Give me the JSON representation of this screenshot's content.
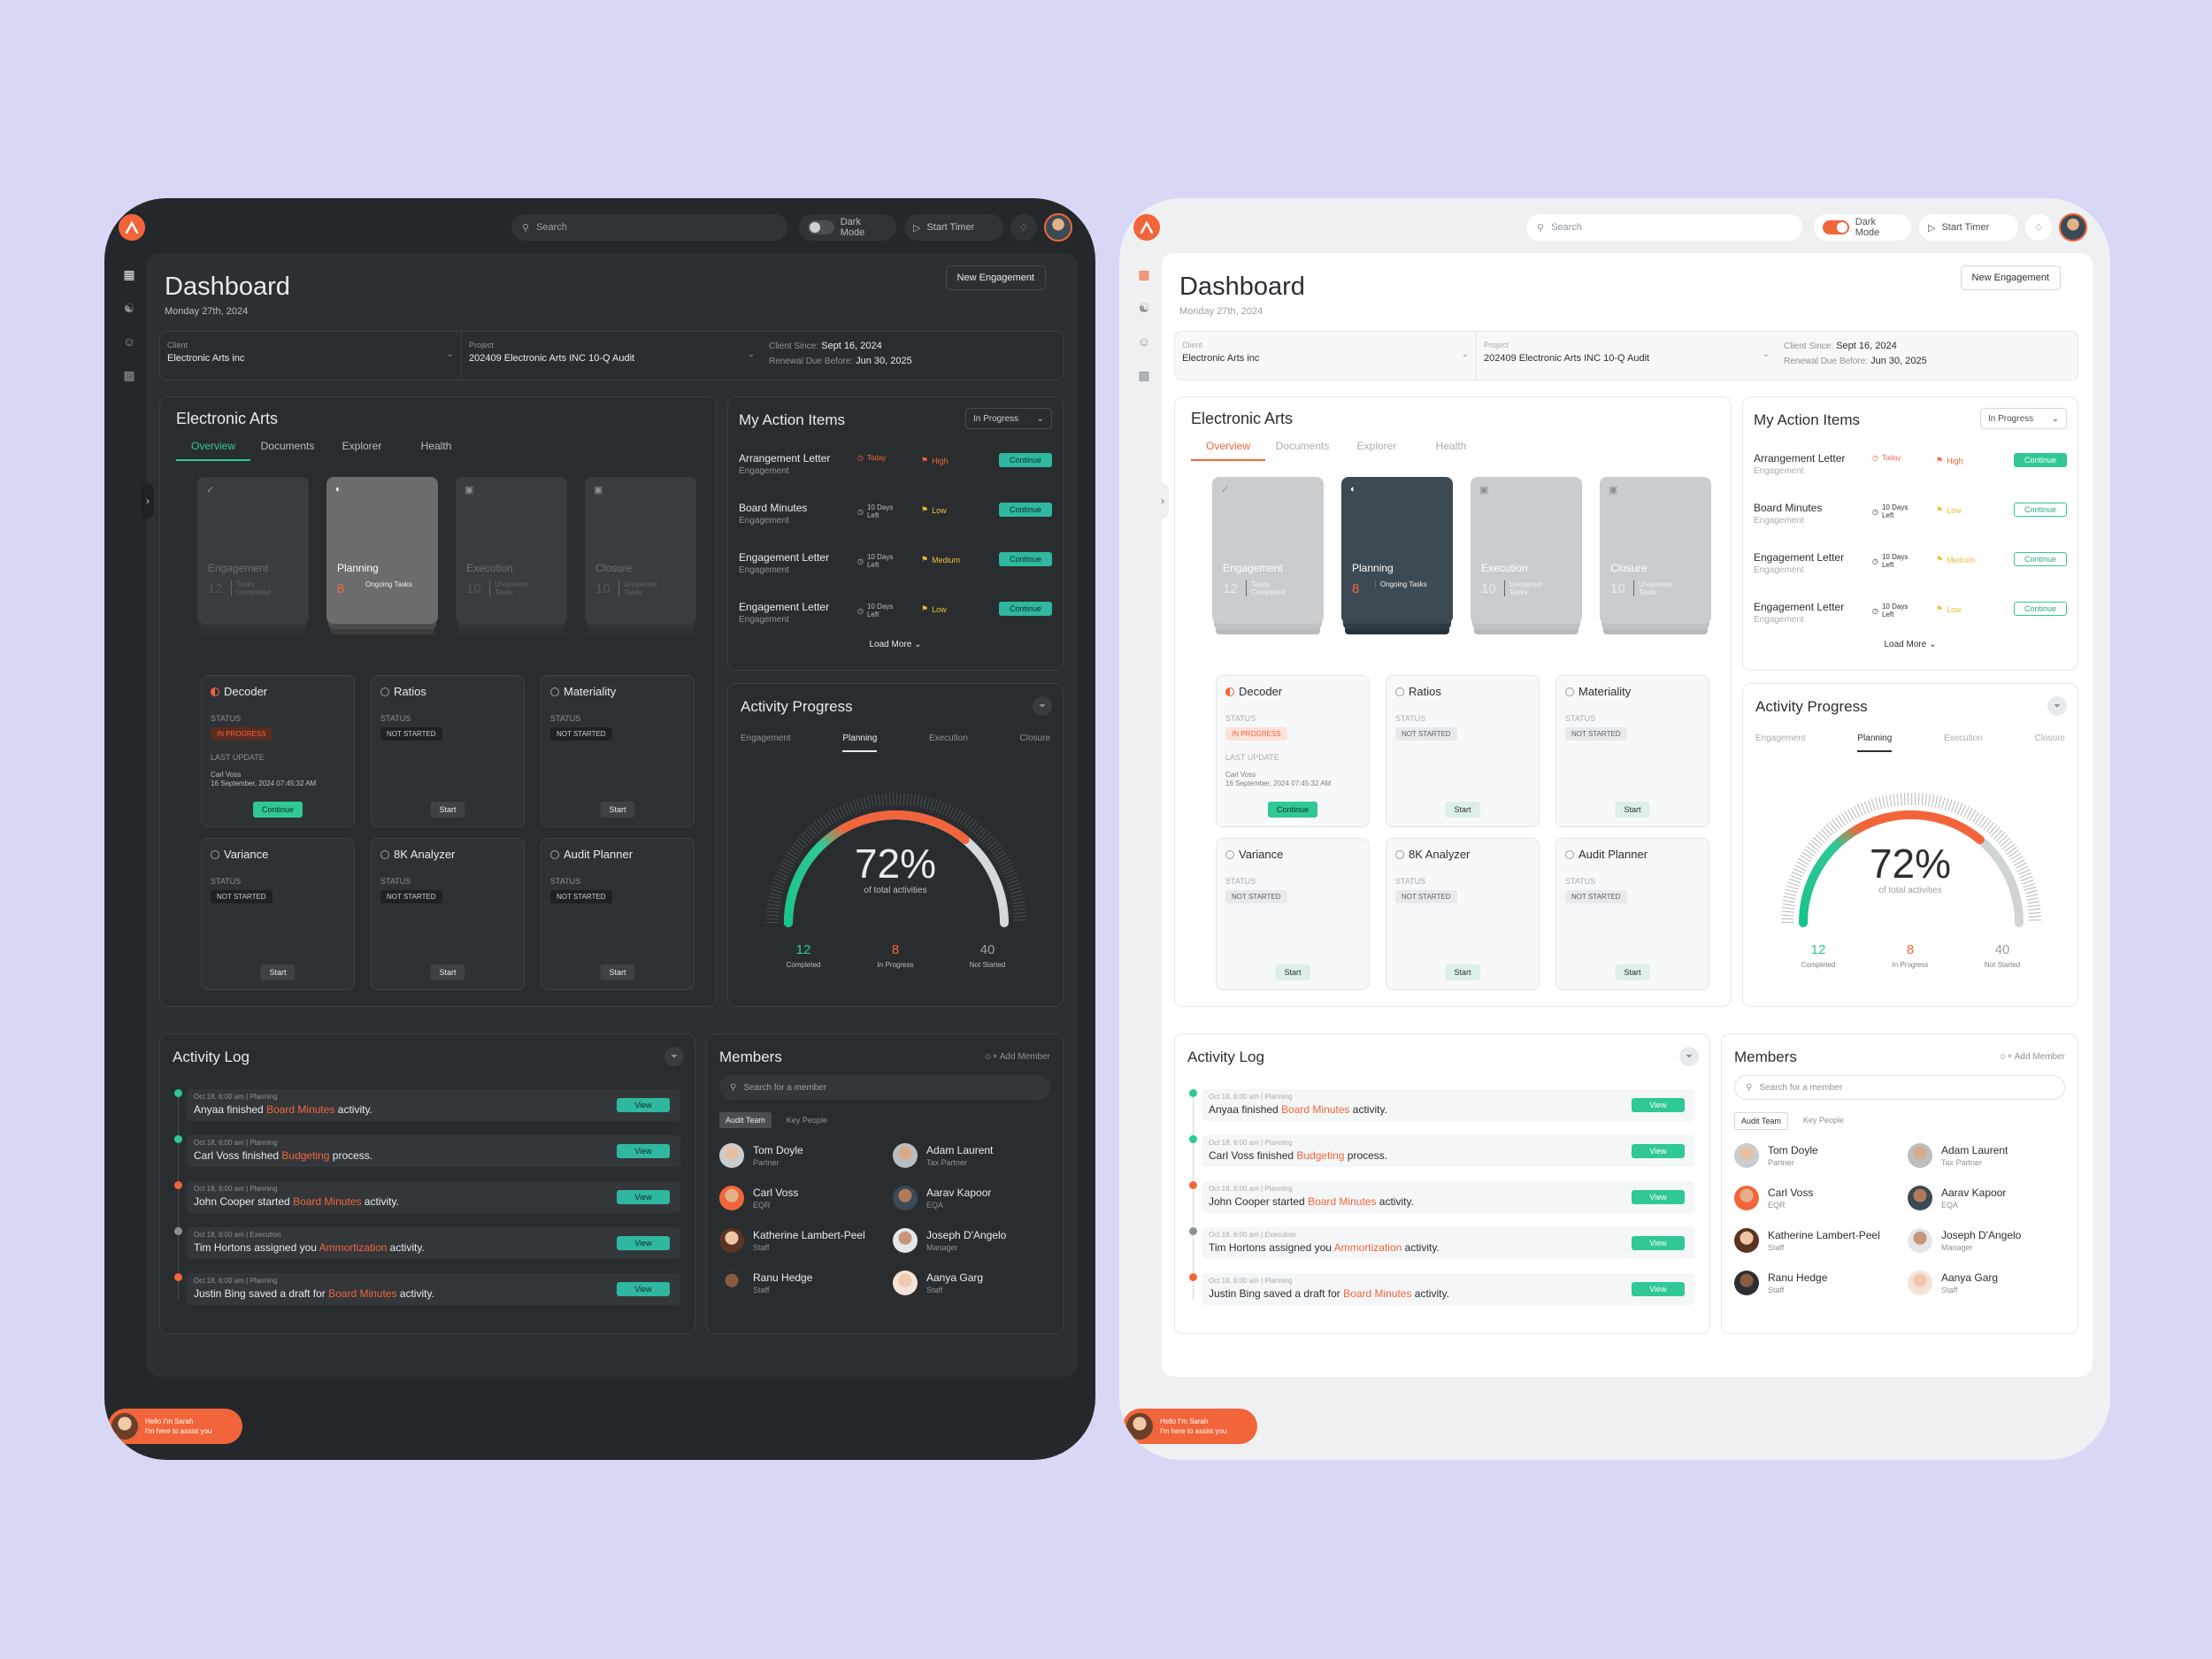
{
  "colors": {
    "accent": "#f2653a",
    "teal": "#2fc896",
    "dark_bg": "#25282a",
    "light_bg": "#eef0f2",
    "page_bg": "#d9d7f6"
  },
  "topbar": {
    "search_placeholder": "Search",
    "dark_mode_label": "Dark Mode",
    "timer_label": "Start Timer"
  },
  "sidebar": {
    "icons": [
      "dashboard-icon",
      "hierarchy-icon",
      "team-icon",
      "folder-icon"
    ]
  },
  "header": {
    "title": "Dashboard",
    "date": "Monday 27th, 2024",
    "new_button": "New Engagement"
  },
  "info": {
    "client_label": "Client",
    "client_value": "Electronic Arts inc",
    "project_label": "Project",
    "project_value": "202409 Electronic Arts INC 10-Q Audit",
    "client_since_label": "Client Since:",
    "client_since_value": "Sept 16, 2024",
    "renewal_label": "Renewal Due Before:",
    "renewal_value": "Jun 30, 2025"
  },
  "ea": {
    "title": "Electronic Arts",
    "tabs": [
      "Overview",
      "Documents",
      "Explorer",
      "Health"
    ],
    "stages": [
      {
        "name": "Engagement",
        "count": "12",
        "sub": "Tasks Completed"
      },
      {
        "name": "Planning",
        "count": "8",
        "sub": "Ongoing Tasks"
      },
      {
        "name": "Execution",
        "count": "10",
        "sub": "Unopened Tasks"
      },
      {
        "name": "Closure",
        "count": "10",
        "sub": "Unopened Tasks"
      }
    ],
    "status_label": "STATUS",
    "last_update_label": "LAST UPDATE",
    "last_update_user": "Carl Voss",
    "last_update_time": "16 September, 2024 07:45:32 AM",
    "tools": [
      {
        "name": "Decoder",
        "status": "IN PROGRESS",
        "button": "Continue"
      },
      {
        "name": "Ratios",
        "status": "NOT STARTED",
        "button": "Start"
      },
      {
        "name": "Materiality",
        "status": "NOT STARTED",
        "button": "Start"
      },
      {
        "name": "Variance",
        "status": "NOT STARTED",
        "button": "Start"
      },
      {
        "name": "8K Analyzer",
        "status": "NOT STARTED",
        "button": "Start"
      },
      {
        "name": "Audit Planner",
        "status": "NOT STARTED",
        "button": "Start"
      }
    ]
  },
  "actions": {
    "title": "My Action Items",
    "filter": "In Progress",
    "load_more": "Load More",
    "items": [
      {
        "name": "Arrangement Letter",
        "sub": "Engagement",
        "due": "Today",
        "priority": "High",
        "button": "Continue"
      },
      {
        "name": "Board Minutes",
        "sub": "Engagement",
        "due": "10 Days Left",
        "priority": "Low",
        "button": "Continue"
      },
      {
        "name": "Engagement Letter",
        "sub": "Engagement",
        "due": "10 Days Left",
        "priority": "Medium",
        "button": "Continue"
      },
      {
        "name": "Engagement Letter",
        "sub": "Engagement",
        "due": "10 Days Left",
        "priority": "Low",
        "button": "Continue"
      }
    ]
  },
  "progress": {
    "title": "Activity Progress",
    "tabs": [
      "Engagement",
      "Planning",
      "Execution",
      "Closure"
    ],
    "percent": "72%",
    "percent_value": 0.72,
    "caption": "of total activities",
    "stats": [
      {
        "value": "12",
        "label": "Completed"
      },
      {
        "value": "8",
        "label": "In Progress"
      },
      {
        "value": "40",
        "label": "Not Started"
      }
    ]
  },
  "log": {
    "title": "Activity Log",
    "view_label": "View",
    "items": [
      {
        "meta": "Oct 18, 6:00 am | Planning",
        "pre": "Anyaa finished ",
        "hl": "Board Minutes",
        "post": " activity."
      },
      {
        "meta": "Oct 18, 6:00 am | Planning",
        "pre": "Carl Voss finished ",
        "hl": "Budgeting",
        "post": " process."
      },
      {
        "meta": "Oct 18, 6:00 am | Planning",
        "pre": "John Cooper started ",
        "hl": "Board Minutes",
        "post": " activity."
      },
      {
        "meta": "Oct 18, 6:00 am | Execution",
        "pre": "Tim Hortons assigned you ",
        "hl": "Ammortization",
        "post": " activity."
      },
      {
        "meta": "Oct 18, 6:00 am | Planning",
        "pre": "Justin Bing saved a draft for ",
        "hl": "Board Minutes",
        "post": " activity."
      }
    ]
  },
  "members": {
    "title": "Members",
    "add": "Add Member",
    "search_placeholder": "Search for a member",
    "tabs": [
      "Audit Team",
      "Key People"
    ],
    "people": [
      {
        "name": "Tom Doyle",
        "role": "Partner"
      },
      {
        "name": "Adam Laurent",
        "role": "Tax Partner"
      },
      {
        "name": "Carl Voss",
        "role": "EQR"
      },
      {
        "name": "Aarav Kapoor",
        "role": "EQA"
      },
      {
        "name": "Katherine Lambert-Peel",
        "role": "Staff"
      },
      {
        "name": "Joseph D'Angelo",
        "role": "Manager"
      },
      {
        "name": "Ranu Hedge",
        "role": "Staff"
      },
      {
        "name": "Aanya Garg",
        "role": "Staff"
      }
    ]
  },
  "chat": {
    "line1": "Hello I'm Sarah",
    "line2": "I'm here to assist you"
  }
}
